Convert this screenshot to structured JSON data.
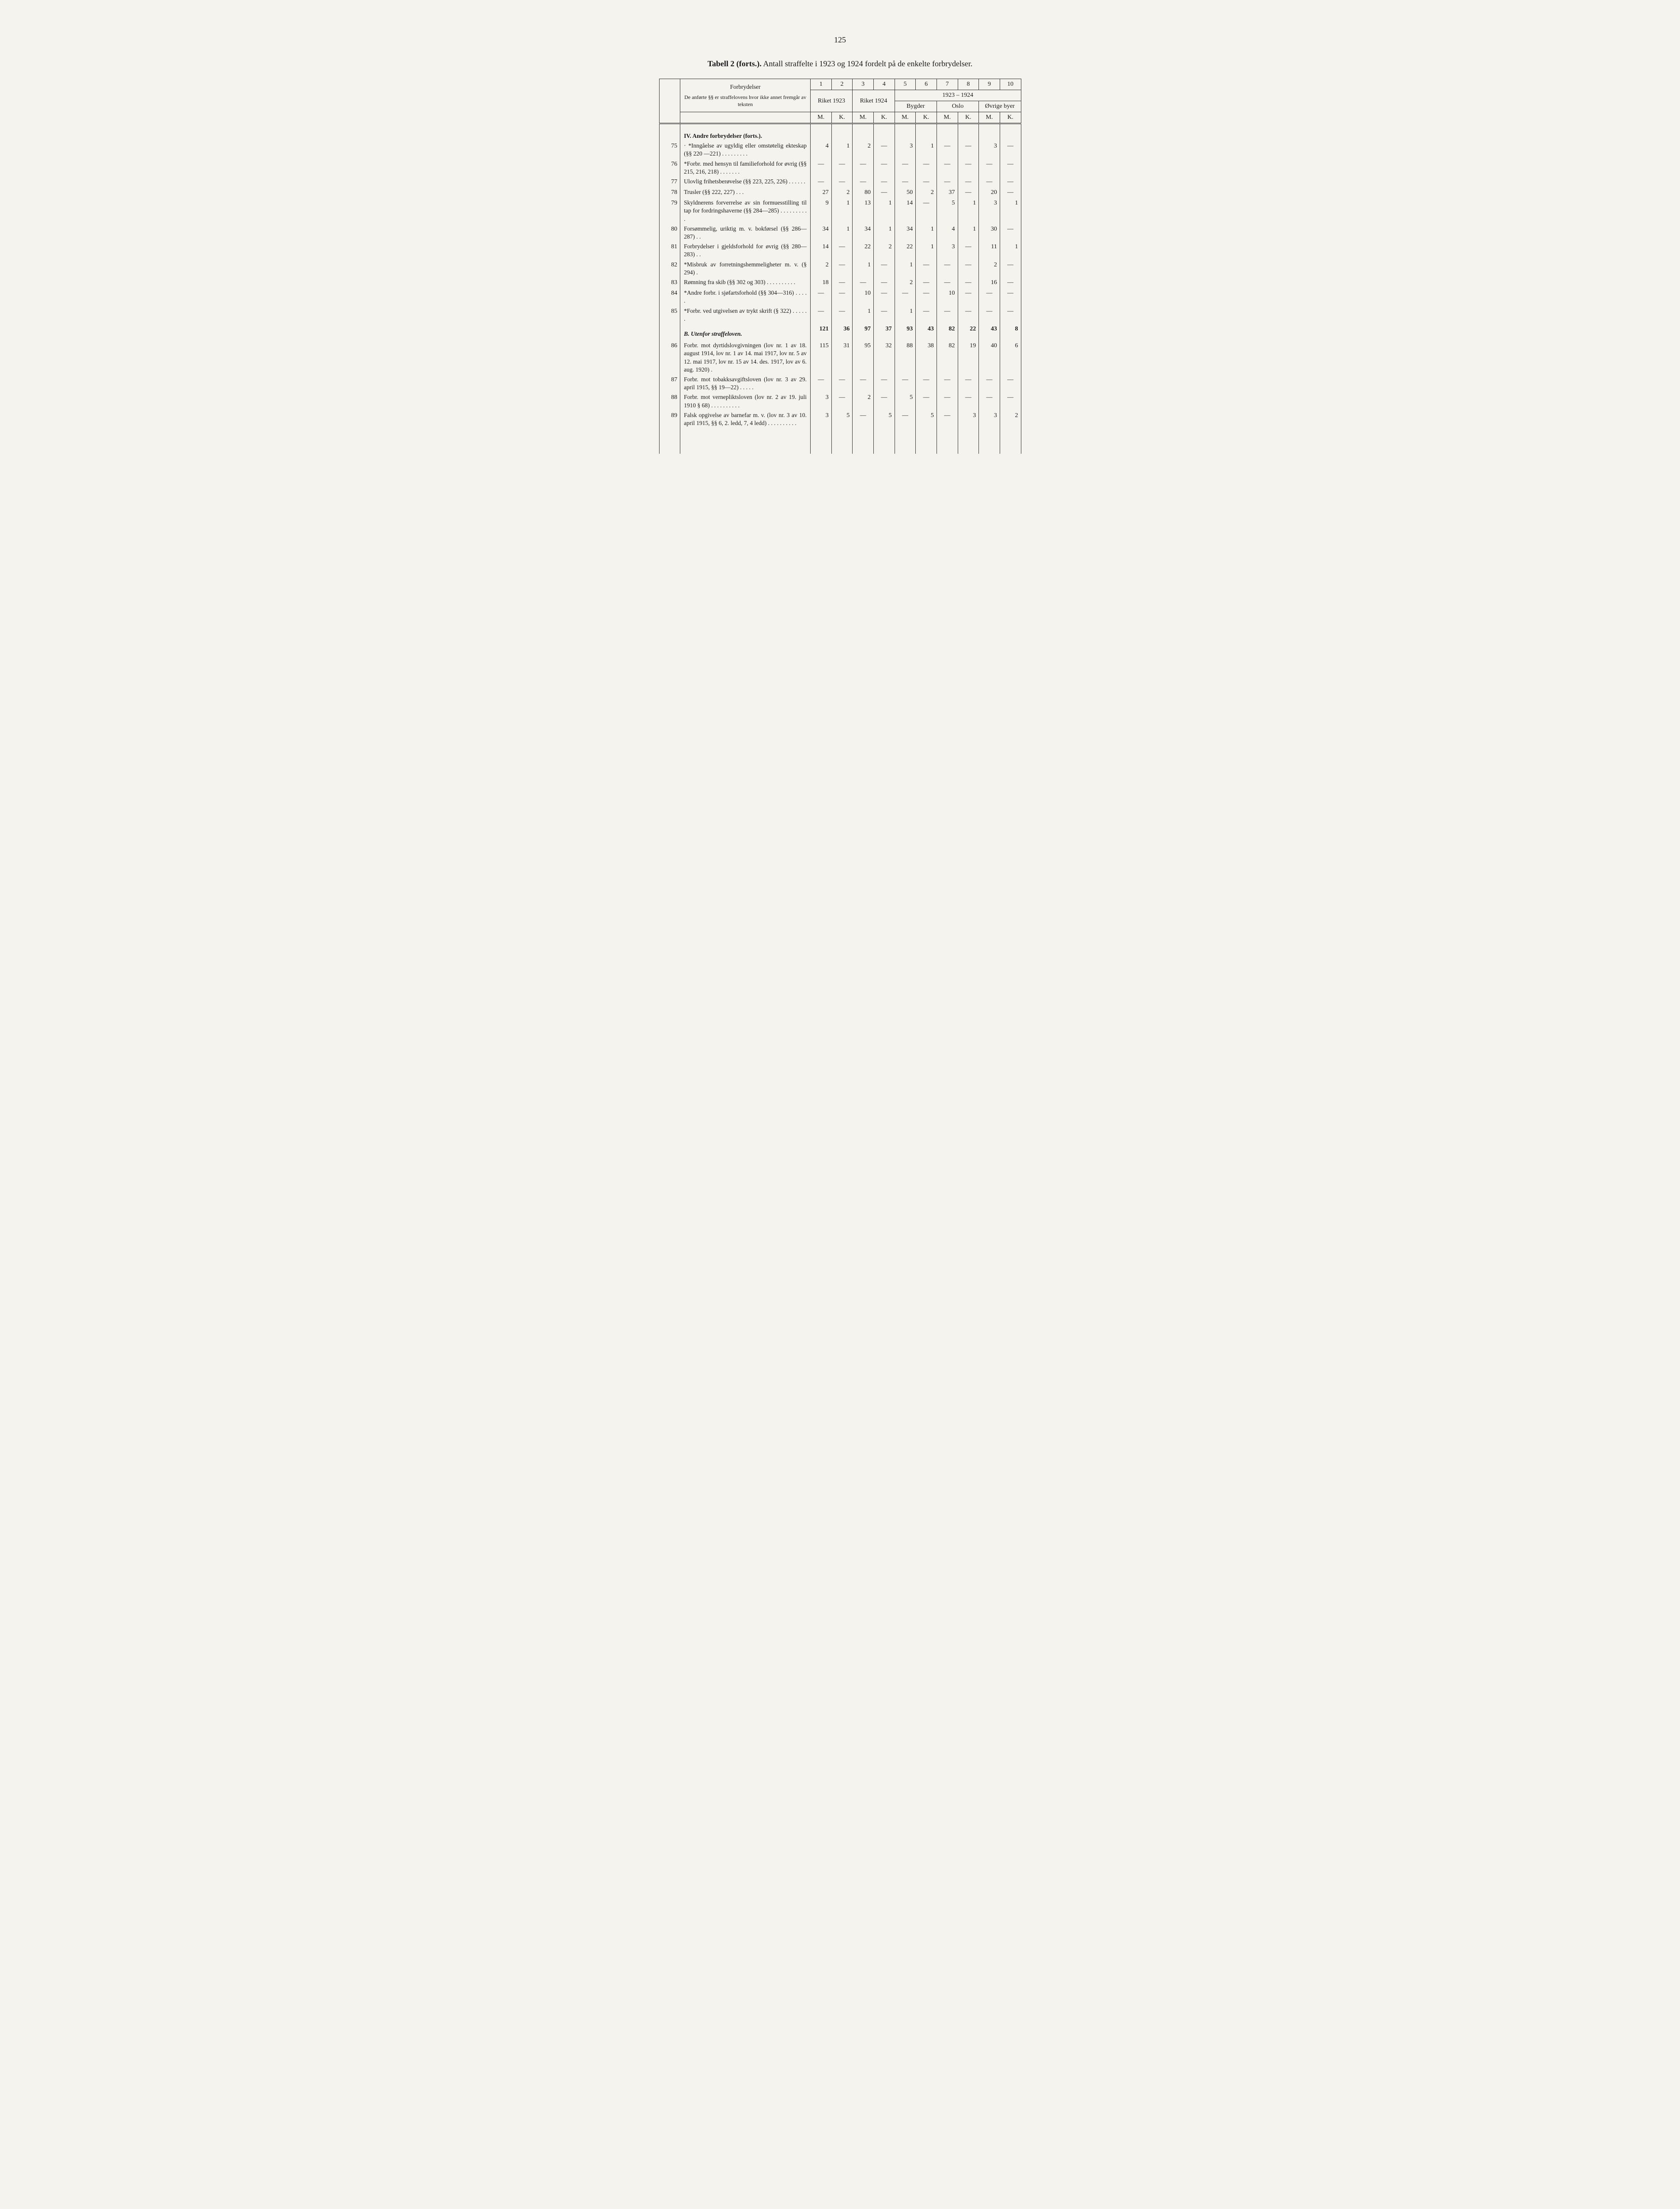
{
  "pageNumber": "125",
  "title": {
    "prefix": "Tabell 2 (forts.).",
    "main": "Antall straffelte i 1923 og 1924 fordelt på de enkelte forbrydelser."
  },
  "header": {
    "forbrydelser": "Forbrydelser",
    "subhead": "De anførte §§ er straffelovens hvor ikke annet fremgår av teksten",
    "colNums": [
      "1",
      "2",
      "3",
      "4",
      "5",
      "6",
      "7",
      "8",
      "9",
      "10"
    ],
    "riket1923": "Riket 1923",
    "riket1924": "Riket 1924",
    "period": "1923 – 1924",
    "bygder": "Bygder",
    "oslo": "Oslo",
    "ovrige": "Øvrige byer",
    "m": "M.",
    "k": "K."
  },
  "sectionIV": "IV. Andre forbrydelser (forts.).",
  "rows": [
    {
      "n": "75",
      "desc": "· *Inngåelse av ugyldig eller omstøtelig ekteskap (§§ 220 —221) . . . . . . . . .",
      "v": [
        "4",
        "1",
        "2",
        "—",
        "3",
        "1",
        "—",
        "—",
        "3",
        "—"
      ]
    },
    {
      "n": "76",
      "desc": "*Forbr. med hensyn til familieforhold for øvrig (§§ 215, 216, 218) . . . . . . .",
      "v": [
        "—",
        "—",
        "—",
        "—",
        "—",
        "—",
        "—",
        "—",
        "—",
        "—"
      ]
    },
    {
      "n": "77",
      "desc": "Ulovlig frihetsberøvelse (§§ 223, 225, 226) . . . . . .",
      "v": [
        "—",
        "—",
        "—",
        "—",
        "—",
        "—",
        "—",
        "—",
        "—",
        "—"
      ]
    },
    {
      "n": "78",
      "desc": "Trusler (§§ 222, 227) . . .",
      "v": [
        "27",
        "2",
        "80",
        "—",
        "50",
        "2",
        "37",
        "—",
        "20",
        "—"
      ]
    },
    {
      "n": "79",
      "desc": "Skyldnerens forverrelse av sin formuesstilling til tap for fordringshaverne (§§ 284—285) . . . . . . . . . .",
      "v": [
        "9",
        "1",
        "13",
        "1",
        "14",
        "—",
        "5",
        "1",
        "3",
        "1"
      ]
    },
    {
      "n": "80",
      "desc": "Forsømmelig, uriktig m. v. bokførsel (§§ 286—287) . .",
      "v": [
        "34",
        "1",
        "34",
        "1",
        "34",
        "1",
        "4",
        "1",
        "30",
        "—"
      ]
    },
    {
      "n": "81",
      "desc": "Forbrydelser i gjeldsforhold for øvrig (§§ 280—283) . .",
      "v": [
        "14",
        "—",
        "22",
        "2",
        "22",
        "1",
        "3",
        "—",
        "11",
        "1"
      ]
    },
    {
      "n": "82",
      "desc": "*Misbruk av forretningshemmeligheter m. v. (§ 294) .",
      "v": [
        "2",
        "—",
        "1",
        "—",
        "1",
        "—",
        "—",
        "—",
        "2",
        "—"
      ]
    },
    {
      "n": "83",
      "desc": "Rømning fra skib (§§ 302 og 303) . . . . . . . . . .",
      "v": [
        "18",
        "—",
        "—",
        "—",
        "2",
        "—",
        "—",
        "—",
        "16",
        "—"
      ]
    },
    {
      "n": "84",
      "desc": "*Andre forbr. i sjøfartsforhold (§§ 304—316) . . . . .",
      "v": [
        "—",
        "—",
        "10",
        "—",
        "—",
        "—",
        "10",
        "—",
        "—",
        "—"
      ]
    },
    {
      "n": "85",
      "desc": "*Forbr. ved utgivelsen av trykt skrift (§ 322) . . . . . .",
      "v": [
        "—",
        "—",
        "1",
        "—",
        "1",
        "—",
        "—",
        "—",
        "—",
        "—"
      ]
    }
  ],
  "sectionB": {
    "label": "B. Utenfor straffeloven.",
    "v": [
      "121",
      "36",
      "97",
      "37",
      "93",
      "43",
      "82",
      "22",
      "43",
      "8"
    ]
  },
  "rowsB": [
    {
      "n": "86",
      "desc": "Forbr. mot dyrtidslovgivningen (lov nr. 1 av 18. august 1914, lov nr. 1 av 14. mai 1917, lov nr. 5 av 12. mai 1917, lov nr. 15 av 14. des. 1917, lov av 6. aug. 1920) .",
      "v": [
        "115",
        "31",
        "95",
        "32",
        "88",
        "38",
        "82",
        "19",
        "40",
        "6"
      ]
    },
    {
      "n": "87",
      "desc": "Forbr. mot tobakksavgiftsloven (lov nr. 3 av 29. april 1915, §§ 19—22) . . . . .",
      "v": [
        "—",
        "—",
        "—",
        "—",
        "—",
        "—",
        "—",
        "—",
        "—",
        "—"
      ]
    },
    {
      "n": "88",
      "desc": "Forbr. mot vernepliktsloven (lov nr. 2 av 19. juli 1910 § 68) . . . . . . . . . .",
      "v": [
        "3",
        "—",
        "2",
        "—",
        "5",
        "—",
        "—",
        "—",
        "—",
        "—"
      ]
    },
    {
      "n": "89",
      "desc": "Falsk opgivelse av barnefar m. v. (lov nr. 3 av 10. april 1915, §§ 6, 2. ledd, 7, 4 ledd) . . . . . . . . . .",
      "v": [
        "3",
        "5",
        "—",
        "5",
        "—",
        "5",
        "—",
        "3",
        "3",
        "2"
      ]
    }
  ]
}
